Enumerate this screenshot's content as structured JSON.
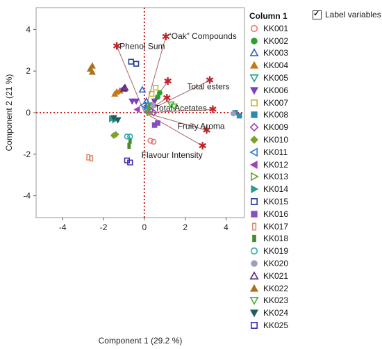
{
  "chart_data": {
    "type": "scatter",
    "xlabel": "Component 1  (29.2 %)",
    "ylabel": "Component 2  (21 %)",
    "xlim": [
      -5.3,
      4.9
    ],
    "ylim": [
      -5.05,
      5.05
    ],
    "xticks": [
      -4,
      -2,
      0,
      2,
      4
    ],
    "yticks": [
      -4,
      -2,
      0,
      2,
      4
    ],
    "grid": false,
    "legend_position": "right",
    "legend_title": "Column 1",
    "reference_lines": {
      "x": 0,
      "y": 0,
      "style": "dotted",
      "color": "#cc2222"
    },
    "series": [
      {
        "name": "KK001",
        "marker": "circle-open",
        "color": "#e07b7b",
        "points": [
          [
            0.3,
            -1.35
          ],
          [
            0.45,
            -1.4
          ]
        ]
      },
      {
        "name": "KK002",
        "marker": "circle",
        "color": "#2ca02c",
        "points": [
          [
            0.65,
            0.75
          ],
          [
            0.75,
            0.95
          ]
        ]
      },
      {
        "name": "KK003",
        "marker": "triangle-up-open",
        "color": "#2f5fd0",
        "points": [
          [
            -0.1,
            1.1
          ],
          [
            0.1,
            0.55
          ]
        ]
      },
      {
        "name": "KK004",
        "marker": "triangle-up",
        "color": "#c07a1b",
        "points": [
          [
            -1.35,
            1.0
          ],
          [
            -1.2,
            1.05
          ],
          [
            -1.45,
            0.9
          ]
        ]
      },
      {
        "name": "KK005",
        "marker": "triangle-down-open",
        "color": "#2a9d8f",
        "points": [
          [
            0.2,
            0.35
          ],
          [
            0.1,
            0.15
          ]
        ]
      },
      {
        "name": "KK006",
        "marker": "triangle-down",
        "color": "#7b3fbf",
        "points": [
          [
            -0.6,
            0.55
          ],
          [
            -0.4,
            0.55
          ],
          [
            0.5,
            0.55
          ]
        ]
      },
      {
        "name": "KK007",
        "marker": "square-open",
        "color": "#c5b62a",
        "points": [
          [
            0.55,
            1.2
          ],
          [
            0.35,
            0.9
          ]
        ]
      },
      {
        "name": "KK008",
        "marker": "square",
        "color": "#2a8ab0",
        "points": [
          [
            4.65,
            -0.15
          ],
          [
            4.45,
            0.0
          ]
        ]
      },
      {
        "name": "KK009",
        "marker": "diamond-open",
        "color": "#9b3fbf",
        "points": [
          [
            0.3,
            0.1
          ],
          [
            0.45,
            0.0
          ]
        ]
      },
      {
        "name": "KK010",
        "marker": "diamond",
        "color": "#7aa328",
        "points": [
          [
            -1.5,
            -1.1
          ],
          [
            -1.4,
            -1.05
          ]
        ]
      },
      {
        "name": "KK011",
        "marker": "triangle-left-open",
        "color": "#2a7bd0",
        "points": [
          [
            -0.05,
            0.35
          ],
          [
            0.15,
            0.25
          ]
        ]
      },
      {
        "name": "KK012",
        "marker": "triangle-left",
        "color": "#a33fbf",
        "points": [
          [
            -1.05,
            1.15
          ],
          [
            -0.35,
            0.15
          ]
        ]
      },
      {
        "name": "KK013",
        "marker": "triangle-right-open",
        "color": "#6aa028",
        "points": [
          [
            0.3,
            0.3
          ],
          [
            0.25,
            0.0
          ]
        ]
      },
      {
        "name": "KK014",
        "marker": "triangle-right",
        "color": "#2a9d8f",
        "points": [
          [
            -1.6,
            -0.3
          ],
          [
            -1.45,
            -0.35
          ]
        ]
      },
      {
        "name": "KK015",
        "marker": "square-open",
        "color": "#1f3f8f",
        "points": [
          [
            -0.65,
            2.45
          ],
          [
            -0.4,
            2.35
          ]
        ]
      },
      {
        "name": "KK016",
        "marker": "square",
        "color": "#8a4fbf",
        "points": [
          [
            0.65,
            -0.5
          ],
          [
            0.5,
            -0.6
          ]
        ]
      },
      {
        "name": "KK017",
        "marker": "rect-open",
        "color": "#e08a6a",
        "points": [
          [
            -2.75,
            -2.15
          ],
          [
            -2.6,
            -2.2
          ]
        ]
      },
      {
        "name": "KK018",
        "marker": "rect",
        "color": "#4a8a2a",
        "points": [
          [
            -0.75,
            -1.6
          ],
          [
            -0.7,
            -1.35
          ]
        ]
      },
      {
        "name": "KK019",
        "marker": "circle-open",
        "color": "#2aaab0",
        "points": [
          [
            -0.85,
            -1.15
          ],
          [
            -0.7,
            -1.15
          ]
        ]
      },
      {
        "name": "KK020",
        "marker": "circle",
        "color": "#9a9fc0",
        "points": [
          [
            4.35,
            -0.05
          ],
          [
            0.45,
            0.35
          ]
        ]
      },
      {
        "name": "KK021",
        "marker": "triangle-up-open",
        "color": "#5a2a7a",
        "points": [
          [
            -0.95,
            1.2
          ],
          [
            -1.0,
            1.15
          ]
        ]
      },
      {
        "name": "KK022",
        "marker": "triangle-up",
        "color": "#b0701b",
        "points": [
          [
            -2.65,
            2.1
          ],
          [
            -2.55,
            1.95
          ],
          [
            -2.55,
            2.25
          ]
        ]
      },
      {
        "name": "KK023",
        "marker": "triangle-down-open",
        "color": "#4ab02a",
        "points": [
          [
            1.3,
            0.4
          ],
          [
            1.45,
            0.3
          ]
        ]
      },
      {
        "name": "KK024",
        "marker": "triangle-down",
        "color": "#1f5f5f",
        "points": [
          [
            -1.3,
            -0.35
          ],
          [
            -1.5,
            -0.25
          ]
        ]
      },
      {
        "name": "KK025",
        "marker": "square-open",
        "color": "#3a2abf",
        "points": [
          [
            -0.85,
            -2.3
          ],
          [
            -0.7,
            -2.4
          ]
        ]
      }
    ],
    "loadings": [
      {
        "label": "Phenol Sum",
        "x": -1.35,
        "y": 3.2
      },
      {
        "label": "“Oak” Compounds",
        "x": 1.05,
        "y": 3.65
      },
      {
        "label": "Total esters",
        "x": 3.2,
        "y": 1.55
      },
      {
        "label": "Total Acetates",
        "x": 3.35,
        "y": 0.15
      },
      {
        "label": "Fruity Aroma",
        "x": 3.05,
        "y": -0.85
      },
      {
        "label": "Flavour Intensity",
        "x": 2.85,
        "y": -1.6
      },
      {
        "label": "",
        "x": 1.15,
        "y": 1.5
      },
      {
        "label": "",
        "x": 1.1,
        "y": 0.7
      }
    ]
  },
  "legend": {
    "title": "Column 1"
  },
  "controls": {
    "label_variables": "Label variables",
    "label_variables_checked": true
  }
}
